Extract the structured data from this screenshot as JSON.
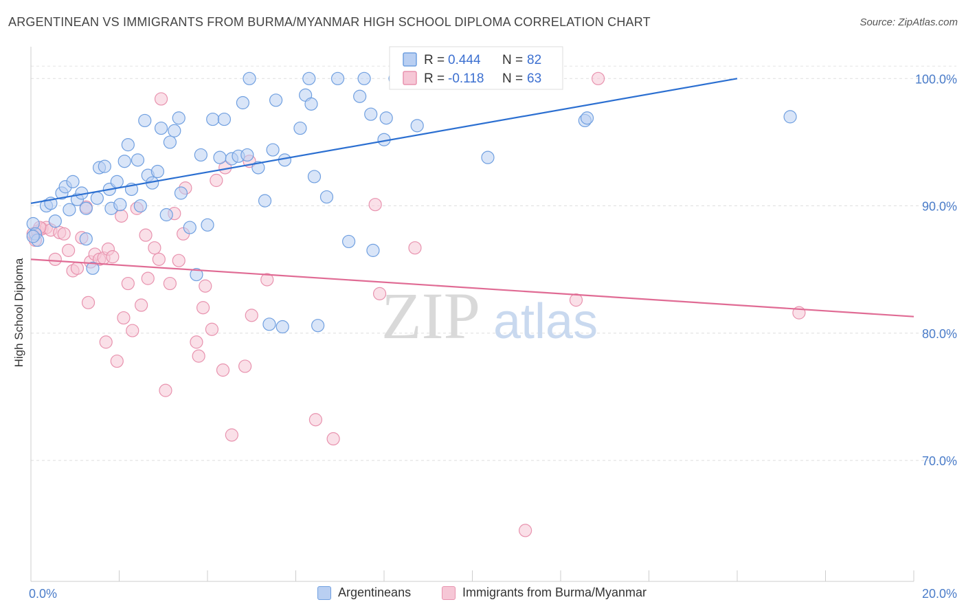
{
  "title": "ARGENTINEAN VS IMMIGRANTS FROM BURMA/MYANMAR HIGH SCHOOL DIPLOMA CORRELATION CHART",
  "source": "Source: ZipAtlas.com",
  "watermark": {
    "zip": "ZIP",
    "atlas": "atlas"
  },
  "colors": {
    "blue": "#6f9fe0",
    "blue_fill": "#b9cff2",
    "blue_line": "#2b6fd1",
    "pink": "#e892ae",
    "pink_fill": "#f6c7d6",
    "pink_line": "#e06b94",
    "axis_text": "#4a7cc9"
  },
  "legend": {
    "r_label": "R =",
    "n_label": "N =",
    "series": [
      {
        "r": "0.444",
        "n": "82"
      },
      {
        "r": "-0.118",
        "n": "63"
      }
    ]
  },
  "bottom_legend": [
    "Argentineans",
    "Immigrants from Burma/Myanmar"
  ],
  "chart_data": {
    "type": "scatter",
    "title": "ARGENTINEAN VS IMMIGRANTS FROM BURMA/MYANMAR HIGH SCHOOL DIPLOMA CORRELATION CHART",
    "xlabel": "",
    "ylabel": "High School Diploma",
    "xlim": [
      0,
      20
    ],
    "ylim": [
      60.5,
      102.5
    ],
    "x_tick_labels": [
      "0.0%",
      "20.0%"
    ],
    "y_ticks": [
      70,
      80,
      90,
      100
    ],
    "y_tick_labels": [
      "70.0%",
      "80.0%",
      "90.0%",
      "100.0%"
    ],
    "grid": true,
    "legend_position": "top-center",
    "series": [
      {
        "name": "Argentineans",
        "trend": {
          "x": [
            0,
            16
          ],
          "y": [
            90.2,
            100.0
          ]
        },
        "points": [
          [
            0.05,
            88.6
          ],
          [
            0.1,
            87.8
          ],
          [
            0.15,
            87.3
          ],
          [
            0.35,
            90.0
          ],
          [
            0.45,
            90.2
          ],
          [
            0.55,
            88.8
          ],
          [
            0.7,
            91.0
          ],
          [
            0.78,
            91.5
          ],
          [
            0.87,
            89.7
          ],
          [
            0.95,
            91.9
          ],
          [
            1.05,
            90.5
          ],
          [
            1.15,
            91.0
          ],
          [
            1.25,
            89.8
          ],
          [
            1.25,
            87.4
          ],
          [
            1.4,
            85.1
          ],
          [
            1.5,
            90.6
          ],
          [
            1.55,
            93.0
          ],
          [
            1.67,
            93.1
          ],
          [
            1.78,
            91.3
          ],
          [
            1.82,
            89.8
          ],
          [
            1.95,
            91.9
          ],
          [
            2.02,
            90.1
          ],
          [
            2.12,
            93.5
          ],
          [
            2.2,
            94.8
          ],
          [
            2.28,
            91.3
          ],
          [
            2.42,
            93.6
          ],
          [
            2.48,
            90.0
          ],
          [
            2.58,
            96.7
          ],
          [
            2.65,
            92.4
          ],
          [
            2.75,
            91.8
          ],
          [
            2.87,
            92.7
          ],
          [
            2.95,
            96.1
          ],
          [
            3.07,
            89.3
          ],
          [
            3.15,
            95.0
          ],
          [
            3.25,
            95.9
          ],
          [
            3.35,
            96.9
          ],
          [
            3.4,
            91.0
          ],
          [
            3.6,
            88.3
          ],
          [
            3.75,
            84.6
          ],
          [
            3.85,
            94.0
          ],
          [
            4.0,
            88.5
          ],
          [
            4.12,
            96.8
          ],
          [
            4.28,
            93.8
          ],
          [
            4.38,
            96.8
          ],
          [
            4.55,
            93.7
          ],
          [
            4.7,
            93.9
          ],
          [
            4.8,
            98.1
          ],
          [
            4.9,
            94.0
          ],
          [
            4.95,
            100.0
          ],
          [
            5.15,
            93.0
          ],
          [
            5.3,
            90.4
          ],
          [
            5.4,
            80.7
          ],
          [
            5.48,
            94.4
          ],
          [
            5.55,
            98.3
          ],
          [
            5.7,
            80.5
          ],
          [
            5.75,
            93.6
          ],
          [
            6.1,
            96.1
          ],
          [
            6.22,
            98.7
          ],
          [
            6.35,
            98.0
          ],
          [
            6.42,
            92.3
          ],
          [
            6.3,
            100.0
          ],
          [
            6.5,
            80.6
          ],
          [
            6.7,
            90.7
          ],
          [
            6.95,
            100.0
          ],
          [
            7.2,
            87.2
          ],
          [
            7.45,
            98.6
          ],
          [
            7.55,
            100.0
          ],
          [
            7.7,
            97.2
          ],
          [
            7.75,
            86.5
          ],
          [
            8.0,
            95.2
          ],
          [
            8.05,
            96.9
          ],
          [
            8.25,
            100.0
          ],
          [
            8.6,
            100.0
          ],
          [
            8.75,
            96.3
          ],
          [
            8.9,
            100.0
          ],
          [
            9.2,
            100.0
          ],
          [
            9.5,
            100.0
          ],
          [
            10.35,
            93.8
          ],
          [
            12.55,
            96.7
          ],
          [
            12.6,
            96.9
          ],
          [
            17.2,
            97.0
          ],
          [
            0.05,
            87.6
          ]
        ]
      },
      {
        "name": "Immigrants from Burma/Myanmar",
        "trend": {
          "x": [
            0,
            20
          ],
          "y": [
            85.8,
            81.3
          ]
        },
        "points": [
          [
            0.05,
            87.8
          ],
          [
            0.15,
            88.0
          ],
          [
            0.25,
            88.2
          ],
          [
            0.35,
            88.3
          ],
          [
            0.45,
            88.1
          ],
          [
            0.55,
            85.8
          ],
          [
            0.65,
            87.9
          ],
          [
            0.75,
            87.8
          ],
          [
            0.85,
            86.5
          ],
          [
            0.95,
            84.9
          ],
          [
            1.05,
            85.1
          ],
          [
            1.15,
            87.5
          ],
          [
            1.25,
            89.9
          ],
          [
            1.3,
            82.4
          ],
          [
            1.35,
            85.6
          ],
          [
            1.45,
            86.2
          ],
          [
            1.55,
            85.8
          ],
          [
            1.65,
            85.9
          ],
          [
            1.7,
            79.3
          ],
          [
            1.75,
            86.6
          ],
          [
            1.85,
            86.0
          ],
          [
            1.95,
            77.8
          ],
          [
            2.05,
            89.2
          ],
          [
            2.1,
            81.2
          ],
          [
            2.2,
            83.9
          ],
          [
            2.3,
            80.2
          ],
          [
            2.4,
            89.8
          ],
          [
            2.5,
            82.2
          ],
          [
            2.6,
            87.7
          ],
          [
            2.65,
            84.3
          ],
          [
            2.8,
            86.7
          ],
          [
            2.9,
            85.8
          ],
          [
            2.95,
            98.4
          ],
          [
            3.05,
            75.5
          ],
          [
            3.15,
            83.9
          ],
          [
            3.25,
            89.4
          ],
          [
            3.35,
            85.7
          ],
          [
            3.45,
            87.8
          ],
          [
            3.5,
            91.4
          ],
          [
            3.75,
            79.3
          ],
          [
            3.8,
            78.2
          ],
          [
            3.9,
            82.0
          ],
          [
            3.95,
            83.7
          ],
          [
            4.1,
            80.3
          ],
          [
            4.2,
            92.0
          ],
          [
            4.35,
            77.1
          ],
          [
            4.4,
            93.0
          ],
          [
            4.55,
            72.0
          ],
          [
            4.85,
            77.4
          ],
          [
            4.95,
            93.5
          ],
          [
            5.0,
            81.4
          ],
          [
            5.35,
            84.2
          ],
          [
            6.45,
            73.2
          ],
          [
            6.85,
            71.7
          ],
          [
            7.8,
            90.1
          ],
          [
            7.9,
            83.1
          ],
          [
            8.7,
            86.7
          ],
          [
            11.2,
            64.5
          ],
          [
            12.35,
            82.6
          ],
          [
            12.85,
            100.0
          ],
          [
            17.4,
            81.6
          ],
          [
            0.1,
            87.3
          ],
          [
            0.2,
            88.3
          ]
        ]
      }
    ]
  }
}
